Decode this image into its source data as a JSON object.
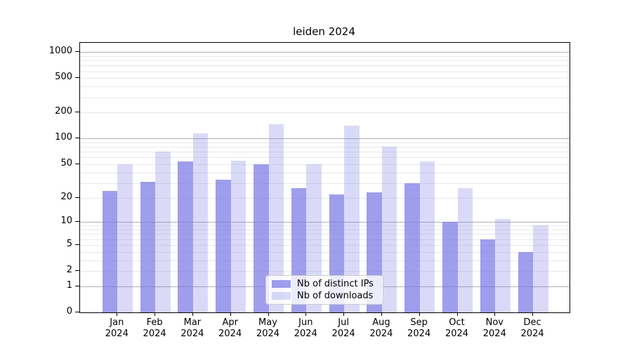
{
  "title": "leiden 2024",
  "colors": {
    "bar_distinct_ips": "rgba(121,121,229,0.72)",
    "bar_downloads": "rgba(121,121,229,0.28)",
    "grid_major": "#b0b0b0",
    "grid_minor": "#e9e9e9",
    "axis": "#000000",
    "legend_border": "#cccccc",
    "legend_bg": "rgba(255,255,255,0.8)"
  },
  "chart_data": {
    "type": "bar",
    "title": "leiden 2024",
    "yscale": "log1p",
    "grid": true,
    "legend_position": "lower center",
    "xlabel": "",
    "ylabel": "",
    "categories": [
      "Jan 2024",
      "Feb 2024",
      "Mar 2024",
      "Apr 2024",
      "May 2024",
      "Jun 2024",
      "Jul 2024",
      "Aug 2024",
      "Sep 2024",
      "Oct 2024",
      "Nov 2024",
      "Dec 2024"
    ],
    "series": [
      {
        "name": "Nb of distinct IPs",
        "values": [
          24,
          31,
          54,
          33,
          50,
          26,
          22,
          23,
          30,
          10,
          6,
          4
        ]
      },
      {
        "name": "Nb of downloads",
        "values": [
          50,
          70,
          115,
          55,
          148,
          50,
          140,
          80,
          54,
          26,
          11,
          9
        ]
      }
    ],
    "yticks": [
      0,
      1,
      2,
      5,
      10,
      20,
      50,
      100,
      200,
      500,
      1000
    ],
    "grid_major_values": [
      1,
      10,
      100,
      1000
    ],
    "ylim": [
      0,
      1282
    ]
  }
}
